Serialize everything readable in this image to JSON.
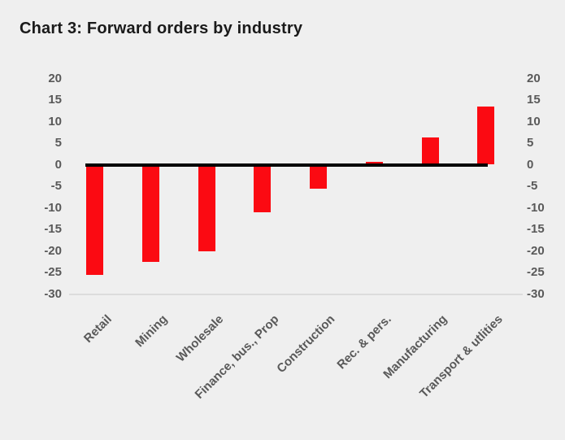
{
  "page": {
    "background_color": "#efefef"
  },
  "chart_data": {
    "type": "bar",
    "title": "Chart 3: Forward orders by industry",
    "categories": [
      "Retail",
      "Mining",
      "Wholesale",
      "Finance, bus., Prop",
      "Construction",
      "Rec. & pers.",
      "Manufacturing",
      "Transport & utlities"
    ],
    "values": [
      -25.5,
      -22.5,
      -20,
      -11,
      -5.5,
      0.7,
      6.3,
      13.5
    ],
    "y_ticks": [
      20,
      15,
      10,
      5,
      0,
      -5,
      -10,
      -15,
      -20,
      -25,
      -30
    ],
    "ylim": [
      -30,
      20
    ],
    "y_axis_sides": [
      "left",
      "right"
    ],
    "xlabel": "",
    "ylabel": "",
    "grid": false,
    "legend": "none",
    "x_label_rotation_deg": 45,
    "bar_color": "#fb0a12",
    "zero_line_color": "#000000",
    "bottom_axis_line_color": "#dcdcdc",
    "tick_label_color": "#595959",
    "title_color": "#1a1a1a"
  }
}
